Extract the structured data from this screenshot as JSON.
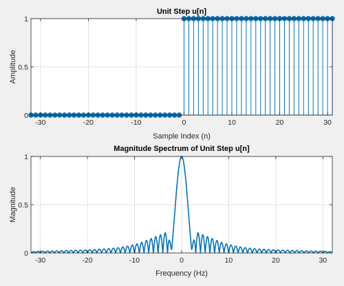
{
  "figure": {
    "background": "#f0f0f0",
    "series_color": "#0072bd"
  },
  "chart_data": [
    {
      "type": "stem",
      "title": "Unit Step u[n]",
      "xlabel": "Sample Index (n)",
      "ylabel": "Amplitude",
      "xlim": [
        -32,
        31
      ],
      "ylim": [
        0,
        1
      ],
      "xticks": [
        -30,
        -20,
        -10,
        0,
        10,
        20,
        30
      ],
      "xtick_labels": [
        "-30",
        "-20",
        "-10",
        "0",
        "10",
        "20",
        "30"
      ],
      "yticks": [
        0,
        0.5,
        1
      ],
      "ytick_labels": [
        "0",
        "0.5",
        "1"
      ],
      "grid": true,
      "legend": "none",
      "marker": "filled-circle",
      "n_start": -32,
      "n_end": 31,
      "step_at": 0,
      "x": [
        -32,
        -31,
        -30,
        -29,
        -28,
        -27,
        -26,
        -25,
        -24,
        -23,
        -22,
        -21,
        -20,
        -19,
        -18,
        -17,
        -16,
        -15,
        -14,
        -13,
        -12,
        -11,
        -10,
        -9,
        -8,
        -7,
        -6,
        -5,
        -4,
        -3,
        -2,
        -1,
        0,
        1,
        2,
        3,
        4,
        5,
        6,
        7,
        8,
        9,
        10,
        11,
        12,
        13,
        14,
        15,
        16,
        17,
        18,
        19,
        20,
        21,
        22,
        23,
        24,
        25,
        26,
        27,
        28,
        29,
        30,
        31
      ],
      "y": [
        0,
        0,
        0,
        0,
        0,
        0,
        0,
        0,
        0,
        0,
        0,
        0,
        0,
        0,
        0,
        0,
        0,
        0,
        0,
        0,
        0,
        0,
        0,
        0,
        0,
        0,
        0,
        0,
        0,
        0,
        0,
        0,
        1,
        1,
        1,
        1,
        1,
        1,
        1,
        1,
        1,
        1,
        1,
        1,
        1,
        1,
        1,
        1,
        1,
        1,
        1,
        1,
        1,
        1,
        1,
        1,
        1,
        1,
        1,
        1,
        1,
        1,
        1,
        1
      ]
    },
    {
      "type": "line",
      "title": "Magnitude Spectrum of Unit Step u[n]",
      "xlabel": "Frequency (Hz)",
      "ylabel": "Magnitude",
      "xlim": [
        -32,
        32
      ],
      "ylim": [
        0,
        1
      ],
      "xticks": [
        -30,
        -20,
        -10,
        0,
        10,
        20,
        30
      ],
      "xtick_labels": [
        "-30",
        "-20",
        "-10",
        "0",
        "10",
        "20",
        "30"
      ],
      "yticks": [
        0,
        0.5,
        1
      ],
      "ytick_labels": [
        "0",
        "0.5",
        "1"
      ],
      "grid": true,
      "legend": "none",
      "series": [
        {
          "description": "normalized |DFT| of 32-sample step (sinc-like: main lobe peak 1 at f=0, first nulls near ±2, side lobes decaying)",
          "x": [
            -32,
            -31,
            -30,
            -29,
            -28,
            -27,
            -26,
            -25,
            -24,
            -23,
            -22,
            -21,
            -20,
            -19,
            -18,
            -17,
            -16,
            -15,
            -14,
            -13,
            -12,
            -11,
            -10,
            -9,
            -8,
            -7,
            -6,
            -5,
            -4,
            -3,
            -2,
            -1,
            0,
            1,
            2,
            3,
            4,
            5,
            6,
            7,
            8,
            9,
            10,
            11,
            12,
            13,
            14,
            15,
            16,
            17,
            18,
            19,
            20,
            21,
            22,
            23,
            24,
            25,
            26,
            27,
            28,
            29,
            30,
            31,
            32
          ],
          "y": [
            0.01,
            0.016,
            0.018,
            0.019,
            0.02,
            0.021,
            0.022,
            0.024,
            0.025,
            0.027,
            0.028,
            0.03,
            0.032,
            0.034,
            0.037,
            0.04,
            0.043,
            0.047,
            0.052,
            0.058,
            0.066,
            0.076,
            0.09,
            0.1,
            0.12,
            0.14,
            0.16,
            0.18,
            0.2,
            0.22,
            0.02,
            0.64,
            1.0,
            0.64,
            0.02,
            0.22,
            0.2,
            0.18,
            0.16,
            0.14,
            0.12,
            0.1,
            0.09,
            0.076,
            0.066,
            0.058,
            0.052,
            0.047,
            0.043,
            0.04,
            0.037,
            0.034,
            0.032,
            0.03,
            0.028,
            0.027,
            0.025,
            0.024,
            0.022,
            0.021,
            0.02,
            0.019,
            0.018,
            0.016,
            0.01
          ]
        }
      ]
    }
  ]
}
